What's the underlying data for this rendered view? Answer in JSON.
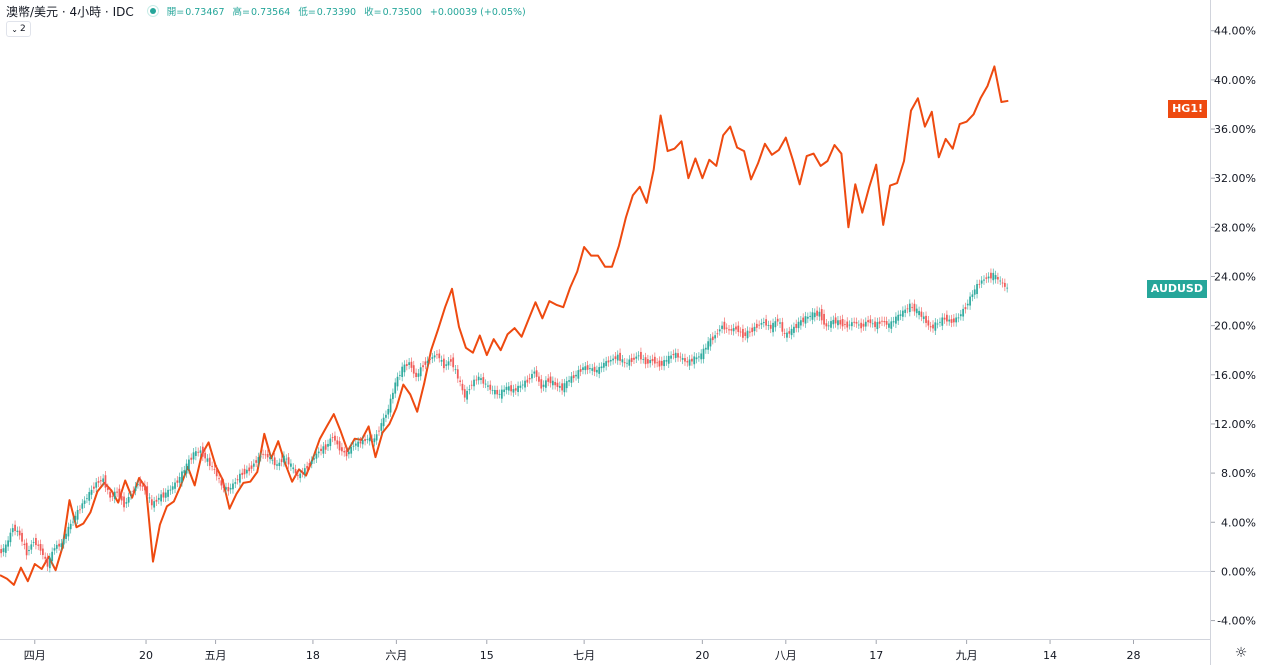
{
  "legend": {
    "title": "澳幣/美元 · 4小時 · IDC",
    "open_label": "開=",
    "open": "0.73467",
    "high_label": "高=",
    "high": "0.73564",
    "low_label": "低=",
    "low": "0.73390",
    "close_label": "收=",
    "close": "0.73500",
    "change": "+0.00039 (+0.05%)",
    "collapse_label": "2",
    "accent_color": "#26a69a"
  },
  "settings_icon": "gear-icon",
  "chart_data": {
    "type": "line",
    "y_axis": {
      "unit": "%",
      "range": [
        -5.5,
        46.5
      ],
      "ticks": [
        "44.00%",
        "40.00%",
        "36.00%",
        "32.00%",
        "28.00%",
        "24.00%",
        "20.00%",
        "16.00%",
        "12.00%",
        "8.00%",
        "4.00%",
        "0.00%",
        "-4.00%"
      ],
      "tick_values": [
        44,
        40,
        36,
        32,
        28,
        24,
        20,
        16,
        12,
        8,
        4,
        0,
        -4
      ],
      "grid": false,
      "zero_line": true
    },
    "x_axis": {
      "range": [
        0,
        174
      ],
      "ticks": [
        {
          "label": "四月",
          "t": 5
        },
        {
          "label": "20",
          "t": 21
        },
        {
          "label": "五月",
          "t": 31
        },
        {
          "label": "18",
          "t": 45
        },
        {
          "label": "六月",
          "t": 57
        },
        {
          "label": "15",
          "t": 70
        },
        {
          "label": "七月",
          "t": 84
        },
        {
          "label": "20",
          "t": 101
        },
        {
          "label": "八月",
          "t": 113
        },
        {
          "label": "17",
          "t": 126
        },
        {
          "label": "九月",
          "t": 139
        },
        {
          "label": "14",
          "t": 151
        },
        {
          "label": "28",
          "t": 163
        }
      ]
    },
    "series": [
      {
        "name": "HG1!",
        "color": "#ee4a10",
        "style": "line",
        "points": [
          [
            0,
            -0.3
          ],
          [
            1,
            -0.6
          ],
          [
            2,
            -1.1
          ],
          [
            3,
            0.3
          ],
          [
            4,
            -0.8
          ],
          [
            5,
            0.6
          ],
          [
            6,
            0.2
          ],
          [
            7,
            1.2
          ],
          [
            8,
            0.1
          ],
          [
            9,
            2.0
          ],
          [
            10,
            5.8
          ],
          [
            11,
            3.6
          ],
          [
            12,
            3.9
          ],
          [
            13,
            4.8
          ],
          [
            14,
            6.5
          ],
          [
            15,
            7.2
          ],
          [
            16,
            6.6
          ],
          [
            17,
            5.6
          ],
          [
            18,
            7.4
          ],
          [
            19,
            6.0
          ],
          [
            20,
            7.6
          ],
          [
            21,
            6.8
          ],
          [
            22,
            0.8
          ],
          [
            23,
            3.8
          ],
          [
            24,
            5.3
          ],
          [
            25,
            5.7
          ],
          [
            26,
            7.0
          ],
          [
            27,
            8.5
          ],
          [
            28,
            7.0
          ],
          [
            29,
            9.5
          ],
          [
            30,
            10.5
          ],
          [
            31,
            8.6
          ],
          [
            32,
            7.5
          ],
          [
            33,
            5.1
          ],
          [
            34,
            6.3
          ],
          [
            35,
            7.2
          ],
          [
            36,
            7.3
          ],
          [
            37,
            8.1
          ],
          [
            38,
            11.2
          ],
          [
            39,
            9.2
          ],
          [
            40,
            10.6
          ],
          [
            41,
            8.8
          ],
          [
            42,
            7.3
          ],
          [
            43,
            8.3
          ],
          [
            44,
            7.8
          ],
          [
            45,
            9.2
          ],
          [
            46,
            10.8
          ],
          [
            47,
            11.8
          ],
          [
            48,
            12.8
          ],
          [
            49,
            11.4
          ],
          [
            50,
            9.8
          ],
          [
            51,
            10.8
          ],
          [
            52,
            10.7
          ],
          [
            53,
            11.8
          ],
          [
            54,
            9.3
          ],
          [
            55,
            11.3
          ],
          [
            56,
            12.0
          ],
          [
            57,
            13.3
          ],
          [
            58,
            15.2
          ],
          [
            59,
            14.4
          ],
          [
            60,
            13.0
          ],
          [
            61,
            15.3
          ],
          [
            62,
            18.0
          ],
          [
            63,
            19.7
          ],
          [
            64,
            21.5
          ],
          [
            65,
            23.0
          ],
          [
            66,
            19.9
          ],
          [
            67,
            18.2
          ],
          [
            68,
            17.8
          ],
          [
            69,
            19.2
          ],
          [
            70,
            17.6
          ],
          [
            71,
            18.9
          ],
          [
            72,
            18.0
          ],
          [
            73,
            19.3
          ],
          [
            74,
            19.8
          ],
          [
            75,
            19.1
          ],
          [
            76,
            20.5
          ],
          [
            77,
            21.9
          ],
          [
            78,
            20.6
          ],
          [
            79,
            22.0
          ],
          [
            80,
            21.7
          ],
          [
            81,
            21.5
          ],
          [
            82,
            23.1
          ],
          [
            83,
            24.4
          ],
          [
            84,
            26.4
          ],
          [
            85,
            25.7
          ],
          [
            86,
            25.7
          ],
          [
            87,
            24.8
          ],
          [
            88,
            24.8
          ],
          [
            89,
            26.5
          ],
          [
            90,
            28.8
          ],
          [
            91,
            30.6
          ],
          [
            92,
            31.3
          ],
          [
            93,
            30.0
          ],
          [
            94,
            32.7
          ],
          [
            95,
            37.1
          ],
          [
            96,
            34.2
          ],
          [
            97,
            34.4
          ],
          [
            98,
            35.0
          ],
          [
            99,
            32.0
          ],
          [
            100,
            33.6
          ],
          [
            101,
            32.0
          ],
          [
            102,
            33.5
          ],
          [
            103,
            33.0
          ],
          [
            104,
            35.5
          ],
          [
            105,
            36.2
          ],
          [
            106,
            34.5
          ],
          [
            107,
            34.2
          ],
          [
            108,
            31.9
          ],
          [
            109,
            33.2
          ],
          [
            110,
            34.8
          ],
          [
            111,
            33.9
          ],
          [
            112,
            34.3
          ],
          [
            113,
            35.3
          ],
          [
            114,
            33.5
          ],
          [
            115,
            31.5
          ],
          [
            116,
            33.8
          ],
          [
            117,
            34.0
          ],
          [
            118,
            33.0
          ],
          [
            119,
            33.4
          ],
          [
            120,
            34.7
          ],
          [
            121,
            34.0
          ],
          [
            122,
            28.0
          ],
          [
            123,
            31.5
          ],
          [
            124,
            29.2
          ],
          [
            125,
            31.3
          ],
          [
            126,
            33.1
          ],
          [
            127,
            28.2
          ],
          [
            128,
            31.4
          ],
          [
            129,
            31.6
          ],
          [
            130,
            33.4
          ],
          [
            131,
            37.5
          ],
          [
            132,
            38.5
          ],
          [
            133,
            36.2
          ],
          [
            134,
            37.4
          ],
          [
            135,
            33.7
          ],
          [
            136,
            35.2
          ],
          [
            137,
            34.4
          ],
          [
            138,
            36.4
          ],
          [
            139,
            36.6
          ],
          [
            140,
            37.2
          ],
          [
            141,
            38.5
          ],
          [
            142,
            39.5
          ],
          [
            143,
            41.1
          ],
          [
            144,
            38.2
          ],
          [
            145,
            38.3
          ]
        ]
      },
      {
        "name": "AUDUSD",
        "color": "#26a69a",
        "style": "candles",
        "up_color": "#26a69a",
        "down_color": "#ef5350",
        "points": [
          [
            0,
            1.5
          ],
          [
            1,
            2.0
          ],
          [
            2,
            3.6
          ],
          [
            3,
            3.0
          ],
          [
            4,
            1.5
          ],
          [
            5,
            2.5
          ],
          [
            6,
            1.8
          ],
          [
            7,
            0.5
          ],
          [
            8,
            2.0
          ],
          [
            9,
            2.2
          ],
          [
            10,
            3.5
          ],
          [
            11,
            4.5
          ],
          [
            12,
            5.5
          ],
          [
            13,
            6.3
          ],
          [
            14,
            7.2
          ],
          [
            15,
            7.5
          ],
          [
            16,
            6.0
          ],
          [
            17,
            6.5
          ],
          [
            18,
            5.4
          ],
          [
            19,
            6.3
          ],
          [
            20,
            7.2
          ],
          [
            21,
            6.7
          ],
          [
            22,
            5.4
          ],
          [
            23,
            6.0
          ],
          [
            24,
            6.3
          ],
          [
            25,
            6.9
          ],
          [
            26,
            7.6
          ],
          [
            27,
            8.6
          ],
          [
            28,
            9.6
          ],
          [
            29,
            9.8
          ],
          [
            30,
            9.0
          ],
          [
            31,
            8.2
          ],
          [
            32,
            7.0
          ],
          [
            33,
            6.6
          ],
          [
            34,
            7.3
          ],
          [
            35,
            8.0
          ],
          [
            36,
            8.3
          ],
          [
            37,
            9.0
          ],
          [
            38,
            9.6
          ],
          [
            39,
            9.2
          ],
          [
            40,
            8.6
          ],
          [
            41,
            9.3
          ],
          [
            42,
            8.6
          ],
          [
            43,
            7.7
          ],
          [
            44,
            8.3
          ],
          [
            45,
            9.0
          ],
          [
            46,
            9.8
          ],
          [
            47,
            10.1
          ],
          [
            48,
            11.0
          ],
          [
            49,
            10.0
          ],
          [
            50,
            9.5
          ],
          [
            51,
            10.3
          ],
          [
            52,
            10.5
          ],
          [
            53,
            10.8
          ],
          [
            54,
            10.7
          ],
          [
            55,
            12.0
          ],
          [
            56,
            13.2
          ],
          [
            57,
            15.3
          ],
          [
            58,
            16.5
          ],
          [
            59,
            17.0
          ],
          [
            60,
            15.8
          ],
          [
            61,
            16.8
          ],
          [
            62,
            17.3
          ],
          [
            63,
            17.7
          ],
          [
            64,
            16.7
          ],
          [
            65,
            17.2
          ],
          [
            66,
            15.8
          ],
          [
            67,
            14.2
          ],
          [
            68,
            15.3
          ],
          [
            69,
            15.8
          ],
          [
            70,
            15.2
          ],
          [
            71,
            14.7
          ],
          [
            72,
            14.4
          ],
          [
            73,
            15.0
          ],
          [
            74,
            14.7
          ],
          [
            75,
            15.1
          ],
          [
            76,
            15.5
          ],
          [
            77,
            16.3
          ],
          [
            78,
            15.0
          ],
          [
            79,
            15.6
          ],
          [
            80,
            15.2
          ],
          [
            81,
            14.9
          ],
          [
            82,
            15.6
          ],
          [
            83,
            16.0
          ],
          [
            84,
            16.6
          ],
          [
            85,
            16.5
          ],
          [
            86,
            16.3
          ],
          [
            87,
            16.9
          ],
          [
            88,
            17.2
          ],
          [
            89,
            17.5
          ],
          [
            90,
            16.9
          ],
          [
            91,
            17.2
          ],
          [
            92,
            17.6
          ],
          [
            93,
            17.0
          ],
          [
            94,
            17.2
          ],
          [
            95,
            16.8
          ],
          [
            96,
            17.2
          ],
          [
            97,
            17.7
          ],
          [
            98,
            17.4
          ],
          [
            99,
            17.0
          ],
          [
            100,
            17.3
          ],
          [
            101,
            17.6
          ],
          [
            102,
            18.6
          ],
          [
            103,
            19.2
          ],
          [
            104,
            20.0
          ],
          [
            105,
            19.6
          ],
          [
            106,
            19.8
          ],
          [
            107,
            19.2
          ],
          [
            108,
            19.5
          ],
          [
            109,
            20.0
          ],
          [
            110,
            20.3
          ],
          [
            111,
            19.8
          ],
          [
            112,
            20.5
          ],
          [
            113,
            19.2
          ],
          [
            114,
            19.6
          ],
          [
            115,
            20.2
          ],
          [
            116,
            20.6
          ],
          [
            117,
            20.9
          ],
          [
            118,
            21.0
          ],
          [
            119,
            19.9
          ],
          [
            120,
            20.4
          ],
          [
            121,
            20.2
          ],
          [
            122,
            20.0
          ],
          [
            123,
            20.3
          ],
          [
            124,
            19.9
          ],
          [
            125,
            20.4
          ],
          [
            126,
            20.0
          ],
          [
            127,
            20.4
          ],
          [
            128,
            20.0
          ],
          [
            129,
            20.6
          ],
          [
            130,
            21.1
          ],
          [
            131,
            21.6
          ],
          [
            132,
            21.2
          ],
          [
            133,
            20.6
          ],
          [
            134,
            19.8
          ],
          [
            135,
            20.2
          ],
          [
            136,
            20.6
          ],
          [
            137,
            20.3
          ],
          [
            138,
            20.7
          ],
          [
            139,
            21.5
          ],
          [
            140,
            22.6
          ],
          [
            141,
            23.5
          ],
          [
            142,
            23.9
          ],
          [
            143,
            24.1
          ],
          [
            144,
            23.6
          ],
          [
            145,
            23.0
          ]
        ]
      }
    ]
  }
}
